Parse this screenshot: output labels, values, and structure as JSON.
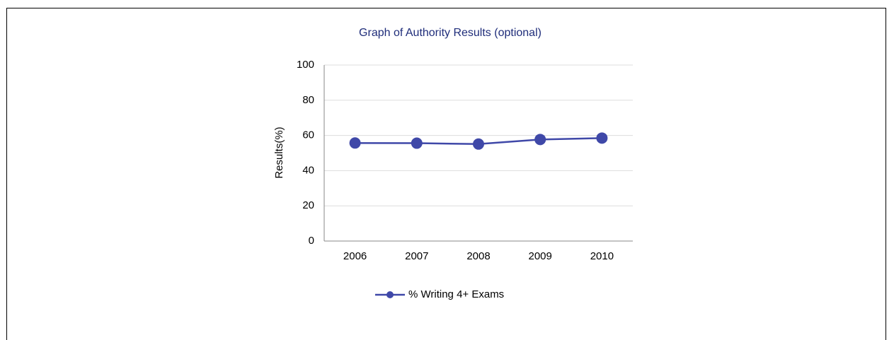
{
  "chart_data": {
    "type": "line",
    "title": "Graph of Authority Results (optional)",
    "y_label": "Results(%)",
    "categories": [
      "2006",
      "2007",
      "2008",
      "2009",
      "2010"
    ],
    "series": [
      {
        "name": "% Writing 4+ Exams",
        "color": "#3f48a8",
        "values": [
          55.7,
          55.6,
          55.1,
          57.7,
          58.5
        ]
      }
    ],
    "ylim": [
      0,
      100
    ],
    "yticks": [
      0,
      20,
      40,
      60,
      80,
      100
    ],
    "grid": true,
    "legend": "bottom"
  }
}
